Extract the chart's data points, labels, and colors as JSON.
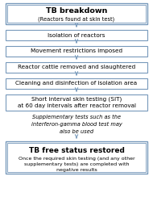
{
  "title": "TB breakdown",
  "title_sub": "(Reactors found at skin test)",
  "boxes": [
    {
      "text": "Isolation of reactors",
      "bold": false,
      "two_line": false
    },
    {
      "text": "Movement restrictions imposed",
      "bold": false,
      "two_line": false
    },
    {
      "text": "Reactor cattle removed and slaughtered",
      "bold": false,
      "two_line": false
    },
    {
      "text": "Cleaning and disinfection of isolation area",
      "bold": false,
      "two_line": false
    },
    {
      "text": "Short interval skin testing (SIT)\nat 60 day intervals after reactor removal",
      "bold": false,
      "two_line": true
    },
    {
      "text": "TB free status restored",
      "bold": true,
      "sub": "Once the required skin testing (and any other\nsupplementary tests) are completed with\nnegative results",
      "two_line": false
    }
  ],
  "italic_note": "Supplementary tests such as the\ninterferon-gamma blood test may\nalso be used",
  "box_edge_color": "#7799bb",
  "arrow_color": "#7799bb",
  "background_color": "#ffffff",
  "text_color": "#000000"
}
